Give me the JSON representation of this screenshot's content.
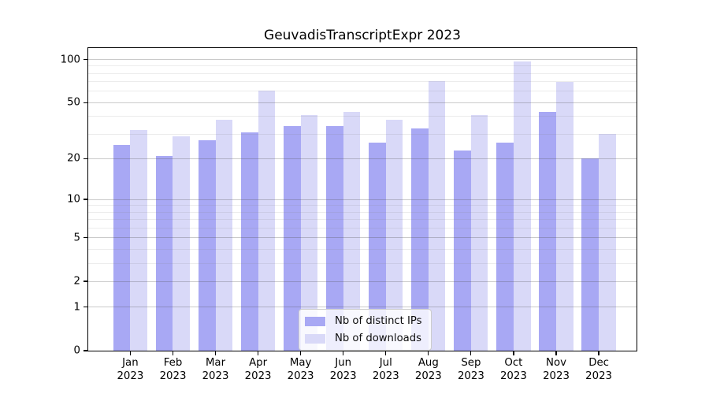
{
  "title": "GeuvadisTranscriptExpr 2023",
  "chart_data": {
    "type": "bar",
    "title": "GeuvadisTranscriptExpr 2023",
    "categories": [
      "Jan 2023",
      "Feb 2023",
      "Mar 2023",
      "Apr 2023",
      "May 2023",
      "Jun 2023",
      "Jul 2023",
      "Aug 2023",
      "Sep 2023",
      "Oct 2023",
      "Nov 2023",
      "Dec 2023"
    ],
    "series": [
      {
        "name": "Nb of distinct IPs",
        "color": "#a8a8f4",
        "values": [
          25,
          21,
          27,
          31,
          34,
          34,
          26,
          33,
          23,
          26,
          43,
          20
        ]
      },
      {
        "name": "Nb of downloads",
        "color": "#d9d9f8",
        "values": [
          32,
          29,
          38,
          61,
          41,
          43,
          38,
          71,
          41,
          97,
          70,
          30
        ]
      }
    ],
    "xlabel": "",
    "ylabel": "",
    "yscale": "log1p",
    "ylim": [
      0,
      120
    ],
    "yticks_major": [
      0,
      1,
      2,
      5,
      10,
      20,
      50,
      100
    ],
    "yticks_minor": [
      3,
      4,
      6,
      7,
      8,
      9,
      30,
      40,
      60,
      70,
      80,
      90
    ],
    "grid": true,
    "legend_position": "lower center",
    "style": {
      "grid_major_color": "rgba(80,80,80,0.30)",
      "grid_minor_color": "rgba(130,130,130,0.15)",
      "spine_color": "#000000",
      "legend_background": "rgba(255,255,255,0.8)",
      "legend_border": "#cccccc",
      "background": "#ffffff"
    }
  }
}
